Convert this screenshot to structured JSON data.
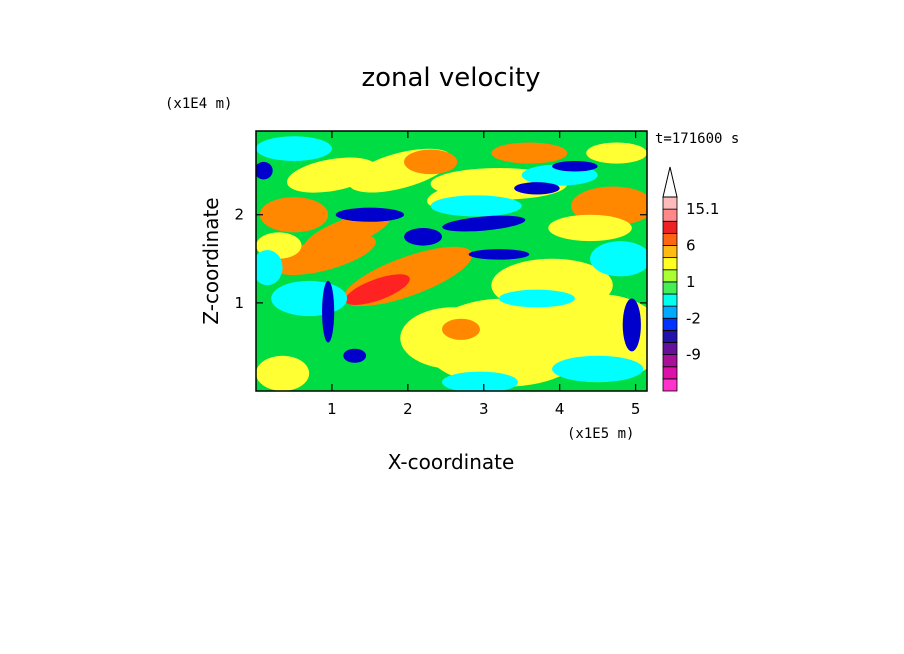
{
  "chart_data": {
    "type": "heatmap",
    "title": "zonal velocity",
    "xlabel": "X-coordinate",
    "ylabel": "Z-coordinate",
    "x_unit": "(x1E5 m)",
    "y_unit": "(x1E4 m)",
    "time_label": "t=171600 s",
    "xlim": [
      0,
      5.15
    ],
    "ylim": [
      0,
      2.95
    ],
    "x_ticks": [
      1,
      2,
      3,
      4,
      5
    ],
    "x_tick_labels": [
      "1",
      "2",
      "3",
      "4",
      "5"
    ],
    "y_ticks": [
      1,
      2
    ],
    "y_tick_labels": [
      "1",
      "2"
    ],
    "colorbar": {
      "labels": [
        "15.1",
        "6",
        "1",
        "-2",
        "-9"
      ],
      "levels": [
        -15,
        -12,
        -9,
        -6,
        -3,
        -2,
        -1,
        0,
        1,
        2,
        4,
        6,
        9,
        12,
        15.1
      ],
      "colors": [
        "#ff33cc",
        "#dd11aa",
        "#aa1199",
        "#661199",
        "#2211aa",
        "#0033ff",
        "#00aaff",
        "#00ffee",
        "#44ee55",
        "#aaff33",
        "#ffff22",
        "#ffbb11",
        "#ff6611",
        "#ee2222",
        "#ff8888",
        "#ffbbbb"
      ]
    },
    "colors": {
      "strong_negative": "#0000cc",
      "weak_negative": "#00ffff",
      "near_zero": "#00dd44",
      "weak_positive": "#ffff33",
      "moderate_positive": "#ff8800",
      "strong_positive": "#ff2222"
    }
  }
}
